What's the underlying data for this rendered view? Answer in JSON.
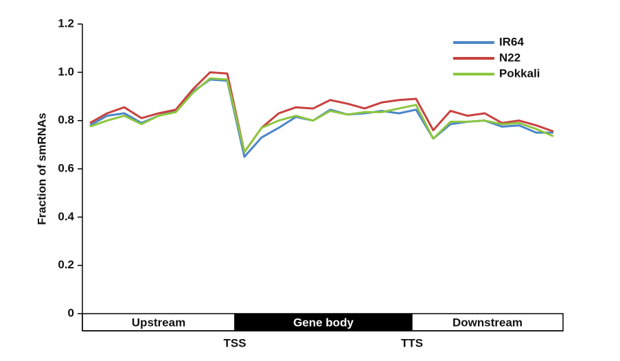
{
  "chart_data": {
    "type": "line",
    "y_label": "Fraction of smRNAs",
    "categories": [
      null,
      null,
      null,
      null,
      null,
      null,
      null,
      null,
      null,
      null,
      null,
      null,
      null,
      null,
      null,
      null,
      null,
      null,
      null,
      null,
      null,
      null,
      null,
      null,
      null,
      null,
      null,
      null
    ],
    "series": [
      {
        "name": "IR64",
        "color": "#4a86c8",
        "values": [
          0.78,
          0.82,
          0.83,
          0.79,
          0.82,
          0.84,
          0.92,
          0.97,
          0.965,
          0.65,
          0.73,
          0.77,
          0.815,
          0.8,
          0.845,
          0.825,
          0.83,
          0.84,
          0.83,
          0.845,
          0.725,
          0.785,
          0.795,
          0.8,
          0.775,
          0.78,
          0.75,
          0.75
        ]
      },
      {
        "name": "N22",
        "color": "#c8413f",
        "values": [
          0.79,
          0.83,
          0.855,
          0.81,
          0.83,
          0.845,
          0.93,
          1.0,
          0.995,
          0.67,
          0.77,
          0.83,
          0.855,
          0.85,
          0.885,
          0.87,
          0.85,
          0.875,
          0.885,
          0.89,
          0.76,
          0.84,
          0.82,
          0.83,
          0.79,
          0.8,
          0.78,
          0.755
        ]
      },
      {
        "name": "Pokkali",
        "color": "#8dc63f",
        "values": [
          0.775,
          0.8,
          0.82,
          0.785,
          0.82,
          0.835,
          0.915,
          0.975,
          0.97,
          0.67,
          0.77,
          0.8,
          0.82,
          0.8,
          0.84,
          0.825,
          0.835,
          0.835,
          0.85,
          0.865,
          0.725,
          0.795,
          0.795,
          0.8,
          0.785,
          0.79,
          0.765,
          0.735
        ]
      }
    ],
    "ylim": [
      0,
      1.2
    ],
    "yticks": [
      0,
      0.2,
      0.4,
      0.6,
      0.8,
      {
        "value": 1,
        "label": "1.0"
      },
      1.2
    ],
    "regions": [
      "Upstream",
      "Gene body",
      "Downstream"
    ],
    "boundaries": [
      "TSS",
      "TTS"
    ],
    "legend": "upper right"
  }
}
